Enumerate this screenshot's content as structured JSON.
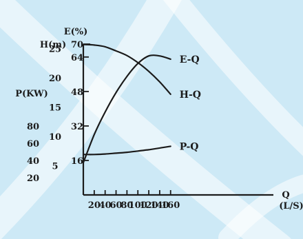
{
  "chart_data": {
    "type": "line",
    "title": "",
    "xlabel": "Q",
    "xunit": "(L/S)",
    "x_ticks": [
      20,
      40,
      60,
      80,
      100,
      120,
      140,
      160
    ],
    "xlim": [
      0,
      178
    ],
    "y_axes": [
      {
        "label": "E(%)",
        "ticks": [
          16,
          32,
          48,
          64
        ],
        "top_tick_label": "70",
        "range": [
          0,
          70
        ]
      },
      {
        "label": "H(m)",
        "ticks": [
          5,
          10,
          15,
          20,
          25
        ],
        "range": [
          0,
          28
        ]
      },
      {
        "label": "P(KW)",
        "ticks": [
          20,
          40,
          60,
          80
        ],
        "range": [
          0,
          100
        ]
      }
    ],
    "series": [
      {
        "name": "E-Q",
        "axis": "E(%)",
        "x": [
          0,
          20,
          40,
          60,
          80,
          100,
          120,
          140,
          160
        ],
        "y": [
          15,
          28,
          38.5,
          47.5,
          55,
          61,
          64.5,
          64.5,
          63
        ]
      },
      {
        "name": "H-Q",
        "axis": "H(m)",
        "x": [
          0,
          20,
          40,
          60,
          80,
          100,
          120,
          140,
          160
        ],
        "y": [
          25.7,
          25.6,
          25.3,
          24.6,
          23.8,
          22.6,
          21.1,
          19.3,
          17.2
        ]
      },
      {
        "name": "P-Q",
        "axis": "P(KW)",
        "x": [
          0,
          20,
          40,
          60,
          80,
          100,
          120,
          140,
          160
        ],
        "y": [
          47,
          47,
          47.5,
          48.5,
          49.5,
          51,
          52.5,
          54.5,
          56.5
        ]
      }
    ],
    "grid": false,
    "legend": "none"
  }
}
